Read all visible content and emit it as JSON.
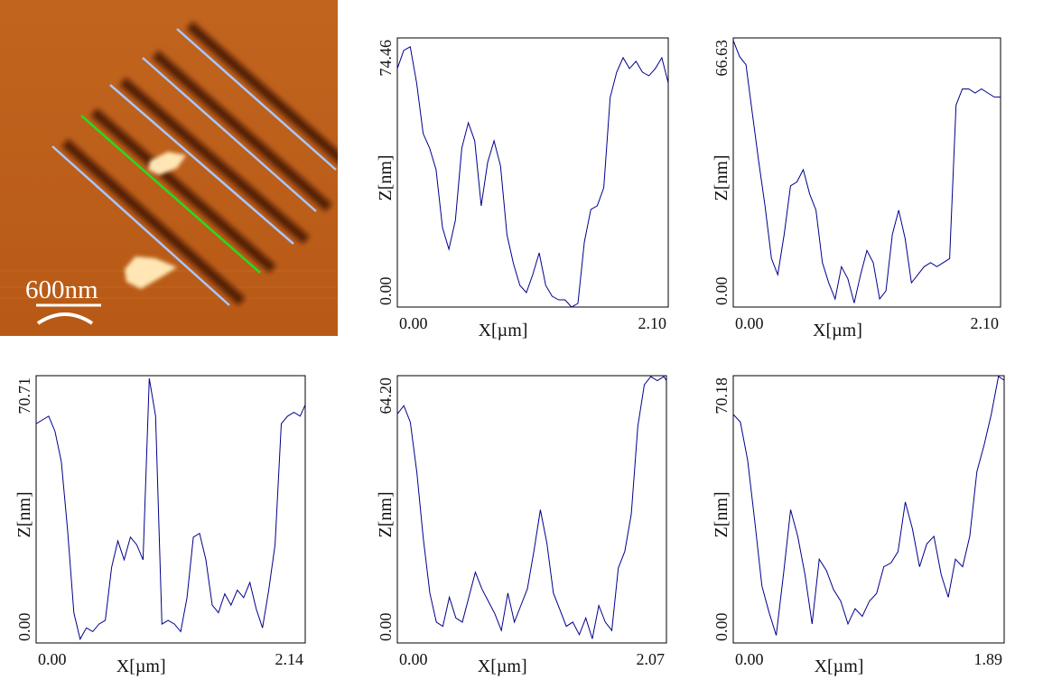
{
  "scan_image": {
    "scale_bar_label": "600nm",
    "colors": {
      "surface": "#c0641e",
      "groove": "#3c1400",
      "particle": "#ffe6b4",
      "profile_line": "#aac6ff",
      "selected_profile_line": "#22dd22",
      "scale_bar": "#ffffff"
    }
  },
  "chart_data": [
    {
      "type": "line",
      "xlabel": "X[µm]",
      "ylabel": "Z[nm]",
      "x_tick_labels": [
        "0.00",
        "2.10"
      ],
      "y_tick_labels": [
        "0.00",
        "74.46"
      ],
      "xlim": [
        0,
        2.1
      ],
      "ylim": [
        0,
        74.46
      ],
      "color": "#00008b",
      "series": [
        {
          "x": [
            0.0,
            0.05,
            0.1,
            0.15,
            0.2,
            0.25,
            0.3,
            0.35,
            0.4,
            0.45,
            0.5,
            0.55,
            0.6,
            0.65,
            0.7,
            0.75,
            0.8,
            0.85,
            0.9,
            0.95,
            1.0,
            1.05,
            1.1,
            1.15,
            1.2,
            1.25,
            1.3,
            1.35,
            1.4,
            1.45,
            1.5,
            1.55,
            1.6,
            1.65,
            1.7,
            1.75,
            1.8,
            1.85,
            1.9,
            1.95,
            2.0,
            2.05,
            2.1
          ],
          "y": [
            66,
            71,
            72,
            62,
            48,
            44,
            38,
            22,
            16,
            24,
            44,
            51,
            46,
            28,
            40,
            46,
            39,
            20,
            12,
            6,
            4,
            9,
            15,
            6,
            3,
            2,
            2,
            0,
            1,
            18,
            27,
            28,
            33,
            58,
            65,
            69,
            66,
            68,
            65,
            64,
            66,
            69,
            62
          ]
        }
      ]
    },
    {
      "type": "line",
      "xlabel": "X[µm]",
      "ylabel": "Z[nm]",
      "x_tick_labels": [
        "0.00",
        "2.10"
      ],
      "y_tick_labels": [
        "0.00",
        "66.63"
      ],
      "xlim": [
        0,
        2.1
      ],
      "ylim": [
        0,
        66.63
      ],
      "color": "#00008b",
      "series": [
        {
          "x": [
            0.0,
            0.05,
            0.1,
            0.15,
            0.2,
            0.25,
            0.3,
            0.35,
            0.4,
            0.45,
            0.5,
            0.55,
            0.6,
            0.65,
            0.7,
            0.75,
            0.8,
            0.85,
            0.9,
            0.95,
            1.0,
            1.05,
            1.1,
            1.15,
            1.2,
            1.25,
            1.3,
            1.35,
            1.4,
            1.45,
            1.5,
            1.55,
            1.6,
            1.65,
            1.7,
            1.75,
            1.8,
            1.85,
            1.9,
            1.95,
            2.0,
            2.05,
            2.1
          ],
          "y": [
            66,
            62,
            60,
            48,
            36,
            25,
            12,
            8,
            18,
            30,
            31,
            34,
            28,
            24,
            11,
            6,
            2,
            10,
            7,
            1,
            8,
            14,
            11,
            2,
            4,
            18,
            24,
            17,
            6,
            8,
            10,
            11,
            10,
            11,
            12,
            50,
            54,
            54,
            53,
            54,
            53,
            52,
            52
          ]
        }
      ]
    },
    {
      "type": "line",
      "xlabel": "X[µm]",
      "ylabel": "Z[nm]",
      "x_tick_labels": [
        "0.00",
        "2.14"
      ],
      "y_tick_labels": [
        "0.00",
        "70.71"
      ],
      "xlim": [
        0,
        2.14
      ],
      "ylim": [
        0,
        70.71
      ],
      "color": "#00008b",
      "series": [
        {
          "x": [
            0.0,
            0.05,
            0.1,
            0.15,
            0.2,
            0.25,
            0.3,
            0.35,
            0.4,
            0.45,
            0.5,
            0.55,
            0.6,
            0.65,
            0.7,
            0.75,
            0.8,
            0.85,
            0.9,
            0.95,
            1.0,
            1.05,
            1.1,
            1.15,
            1.2,
            1.25,
            1.3,
            1.35,
            1.4,
            1.45,
            1.5,
            1.55,
            1.6,
            1.65,
            1.7,
            1.75,
            1.8,
            1.85,
            1.9,
            1.95,
            2.0,
            2.05,
            2.1,
            2.14
          ],
          "y": [
            58,
            59,
            60,
            56,
            48,
            30,
            8,
            1,
            4,
            3,
            5,
            6,
            20,
            27,
            22,
            28,
            26,
            22,
            70,
            60,
            5,
            6,
            5,
            3,
            12,
            28,
            29,
            22,
            10,
            8,
            13,
            10,
            14,
            12,
            16,
            9,
            4,
            14,
            26,
            58,
            60,
            61,
            60,
            63
          ]
        }
      ]
    },
    {
      "type": "line",
      "xlabel": "X[µm]",
      "ylabel": "Z[nm]",
      "x_tick_labels": [
        "0.00",
        "2.07"
      ],
      "y_tick_labels": [
        "0.00",
        "64.20"
      ],
      "xlim": [
        0,
        2.07
      ],
      "ylim": [
        0,
        64.2
      ],
      "color": "#00008b",
      "series": [
        {
          "x": [
            0.0,
            0.05,
            0.1,
            0.15,
            0.2,
            0.25,
            0.3,
            0.35,
            0.4,
            0.45,
            0.5,
            0.55,
            0.6,
            0.65,
            0.7,
            0.75,
            0.8,
            0.85,
            0.9,
            0.95,
            1.0,
            1.05,
            1.1,
            1.15,
            1.2,
            1.25,
            1.3,
            1.35,
            1.4,
            1.45,
            1.5,
            1.55,
            1.6,
            1.65,
            1.7,
            1.75,
            1.8,
            1.85,
            1.9,
            1.95,
            2.0,
            2.05,
            2.07
          ],
          "y": [
            55,
            57,
            53,
            41,
            25,
            12,
            5,
            4,
            11,
            6,
            5,
            11,
            17,
            13,
            10,
            7,
            3,
            12,
            5,
            9,
            13,
            22,
            32,
            24,
            12,
            8,
            4,
            5,
            2,
            6,
            1,
            9,
            5,
            3,
            18,
            22,
            31,
            52,
            62,
            64,
            63,
            64,
            63
          ]
        }
      ]
    },
    {
      "type": "line",
      "xlabel": "X[µm]",
      "ylabel": "Z[nm]",
      "x_tick_labels": [
        "0.00",
        "1.89"
      ],
      "y_tick_labels": [
        "0.00",
        "70.18"
      ],
      "xlim": [
        0,
        1.89
      ],
      "ylim": [
        0,
        70.18
      ],
      "color": "#00008b",
      "series": [
        {
          "x": [
            0.0,
            0.05,
            0.1,
            0.15,
            0.2,
            0.25,
            0.3,
            0.35,
            0.4,
            0.45,
            0.5,
            0.55,
            0.6,
            0.65,
            0.7,
            0.75,
            0.8,
            0.85,
            0.9,
            0.95,
            1.0,
            1.05,
            1.1,
            1.15,
            1.2,
            1.25,
            1.3,
            1.35,
            1.4,
            1.45,
            1.5,
            1.55,
            1.6,
            1.65,
            1.7,
            1.75,
            1.8,
            1.85,
            1.89
          ],
          "y": [
            60,
            58,
            48,
            32,
            15,
            8,
            2,
            18,
            35,
            28,
            18,
            5,
            22,
            19,
            14,
            11,
            5,
            9,
            7,
            11,
            13,
            20,
            21,
            24,
            37,
            30,
            20,
            26,
            28,
            18,
            12,
            22,
            20,
            28,
            45,
            52,
            60,
            70,
            69
          ]
        }
      ]
    }
  ]
}
